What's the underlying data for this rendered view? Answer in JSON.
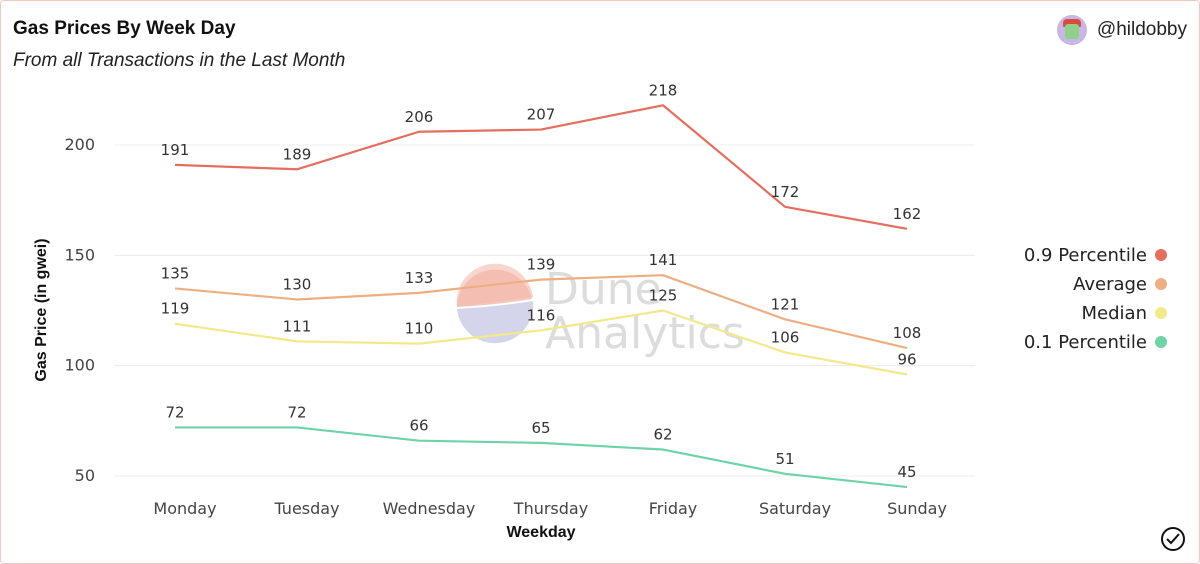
{
  "header": {
    "title": "Gas Prices By Week Day",
    "subtitle": "From all Transactions in the Last Month",
    "username": "@hildobby"
  },
  "chart_data": {
    "type": "line",
    "title": "Gas Prices By Week Day",
    "subtitle": "From all Transactions in the Last Month",
    "xlabel": "Weekday",
    "ylabel": "Gas Price (in gwei)",
    "categories": [
      "Monday",
      "Tuesday",
      "Wednesday",
      "Thursday",
      "Friday",
      "Saturday",
      "Sunday"
    ],
    "yticks": [
      50,
      100,
      150,
      200
    ],
    "ylim": [
      40,
      228
    ],
    "grid": true,
    "legend_position": "right",
    "series": [
      {
        "name": "0.9 Percentile",
        "color": "#e46f5f",
        "values": [
          191,
          189,
          206,
          207,
          218,
          172,
          162
        ]
      },
      {
        "name": "Average",
        "color": "#efae82",
        "values": [
          135,
          130,
          133,
          139,
          141,
          121,
          108
        ]
      },
      {
        "name": "Median",
        "color": "#f3e98b",
        "values": [
          119,
          111,
          110,
          116,
          125,
          106,
          96
        ]
      },
      {
        "name": "0.1 Percentile",
        "color": "#6fd3a8",
        "values": [
          72,
          72,
          66,
          65,
          62,
          51,
          45
        ]
      }
    ]
  },
  "watermark": {
    "line1": "Dune",
    "line2": "Analytics"
  }
}
